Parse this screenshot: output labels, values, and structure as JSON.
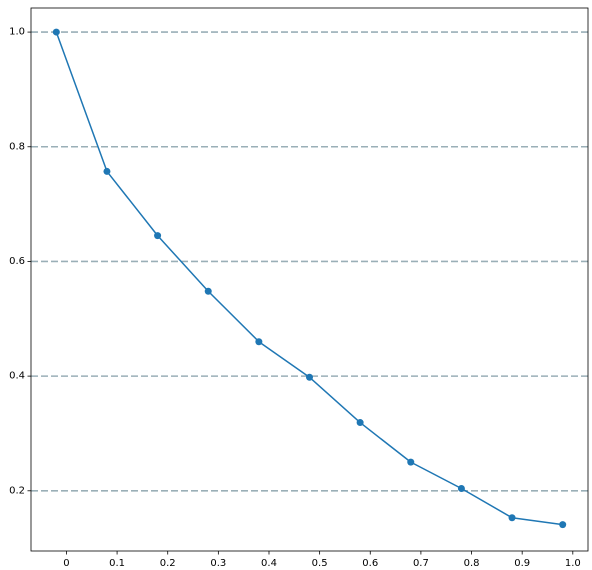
{
  "chart_data": {
    "type": "line",
    "title": "",
    "xlabel": "",
    "ylabel": "",
    "x": [
      -0.02,
      0.08,
      0.18,
      0.28,
      0.38,
      0.48,
      0.58,
      0.68,
      0.78,
      0.88,
      0.98
    ],
    "series": [
      {
        "values": [
          1.0,
          0.757,
          0.645,
          0.548,
          0.46,
          0.398,
          0.319,
          0.25,
          0.204,
          0.153,
          0.141
        ],
        "color": "#1f77b4",
        "marker": "circle"
      }
    ],
    "xlim": [
      -0.07,
      1.03
    ],
    "ylim": [
      0.095,
      1.042
    ],
    "xticks": [
      0,
      0.1,
      0.2,
      0.3,
      0.4,
      0.5,
      0.6,
      0.7,
      0.8,
      0.9,
      1.0
    ],
    "xtick_labels": [
      "0",
      "0.1",
      "0.2",
      "0.3",
      "0.4",
      "0.5",
      "0.6",
      "0.7",
      "0.8",
      "0.9",
      "1.0"
    ],
    "yticks": [
      0.2,
      0.4,
      0.6,
      0.8,
      1.0
    ],
    "ytick_labels": [
      "0.2",
      "0.4",
      "0.6",
      "0.8",
      "1.0"
    ],
    "grid": {
      "axis": "y",
      "style": "dashed",
      "color": "#9aafb7"
    },
    "legend": "none"
  }
}
